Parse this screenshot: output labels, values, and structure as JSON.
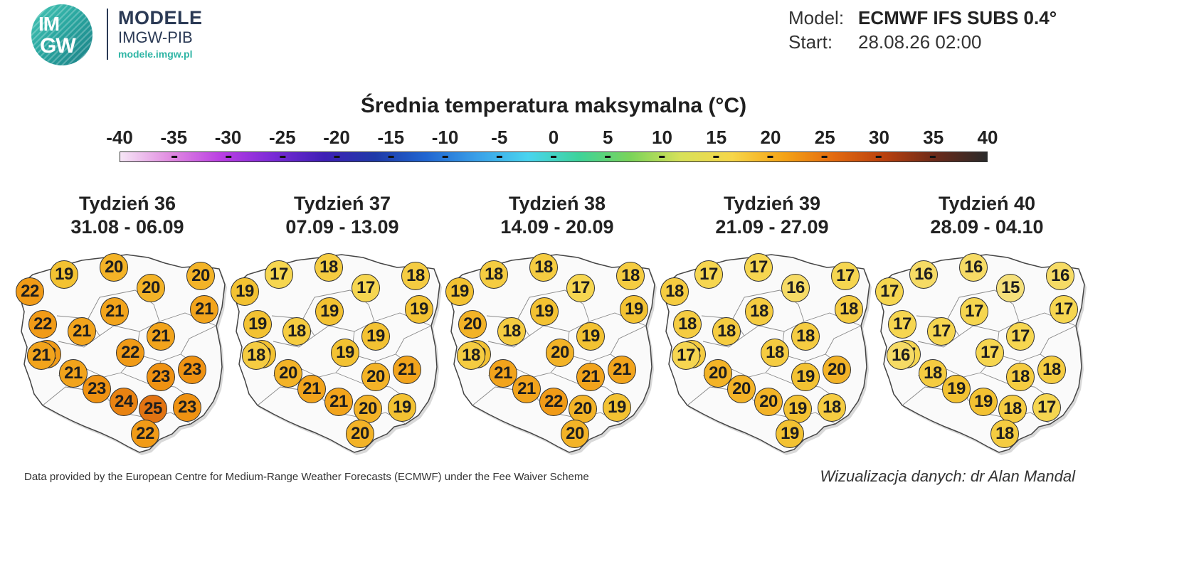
{
  "logo": {
    "circle_line1": "IM",
    "circle_line2": "GW",
    "name": "MODELE",
    "org": "IMGW-PIB",
    "url": "modele.imgw.pl"
  },
  "meta": {
    "model_label": "Model:",
    "model_value": "ECMWF IFS SUBS 0.4°",
    "start_label": "Start:",
    "start_value": "28.08.26 02:00"
  },
  "title": "Średnia temperatura maksymalna (°C)",
  "scale": {
    "ticks": [
      "-40",
      "-35",
      "-30",
      "-25",
      "-20",
      "-15",
      "-10",
      "-5",
      "0",
      "5",
      "10",
      "15",
      "20",
      "25",
      "30",
      "35",
      "40"
    ],
    "colors": [
      "#f6e6f6",
      "#e08ae0",
      "#b93ee3",
      "#7a2bd6",
      "#3e1fb5",
      "#1f3aa8",
      "#2166d1",
      "#3aa0e8",
      "#49d4ef",
      "#3ed39a",
      "#7ad35a",
      "#d8e15a",
      "#f6d64a",
      "#f5a416",
      "#e36a10",
      "#b8400e",
      "#6a2a1a",
      "#2a2a2a"
    ],
    "range": [
      -40,
      40
    ]
  },
  "weeks": [
    {
      "week": "Tydzień 36",
      "dates": "31.08 - 06.09",
      "values": [
        22,
        19,
        20,
        20,
        20,
        22,
        21,
        21,
        21,
        21,
        22,
        22,
        21,
        23,
        23,
        23,
        24,
        25,
        23,
        22,
        21
      ]
    },
    {
      "week": "Tydzień 37",
      "dates": "07.09 - 13.09",
      "values": [
        19,
        17,
        18,
        18,
        17,
        19,
        19,
        19,
        18,
        19,
        19,
        19,
        20,
        21,
        20,
        21,
        21,
        20,
        19,
        20,
        18
      ]
    },
    {
      "week": "Tydzień 38",
      "dates": "14.09 - 20.09",
      "values": [
        19,
        18,
        18,
        18,
        17,
        20,
        19,
        19,
        18,
        19,
        19,
        20,
        21,
        21,
        21,
        21,
        22,
        20,
        19,
        20,
        18
      ]
    },
    {
      "week": "Tydzień 39",
      "dates": "21.09 - 27.09",
      "values": [
        18,
        17,
        17,
        17,
        16,
        18,
        18,
        18,
        18,
        18,
        18,
        18,
        20,
        20,
        19,
        20,
        20,
        19,
        18,
        19,
        17
      ]
    },
    {
      "week": "Tydzień 40",
      "dates": "28.09 - 04.10",
      "values": [
        17,
        16,
        16,
        16,
        15,
        17,
        17,
        17,
        17,
        17,
        17,
        17,
        18,
        18,
        18,
        19,
        19,
        18,
        17,
        18,
        16
      ]
    }
  ],
  "footer": {
    "left": "Data provided by the European Centre for Medium-Range Weather Forecasts (ECMWF) under the Fee Waiver Scheme",
    "right": "Wizualizacja danych: dr Alan Mandal"
  }
}
